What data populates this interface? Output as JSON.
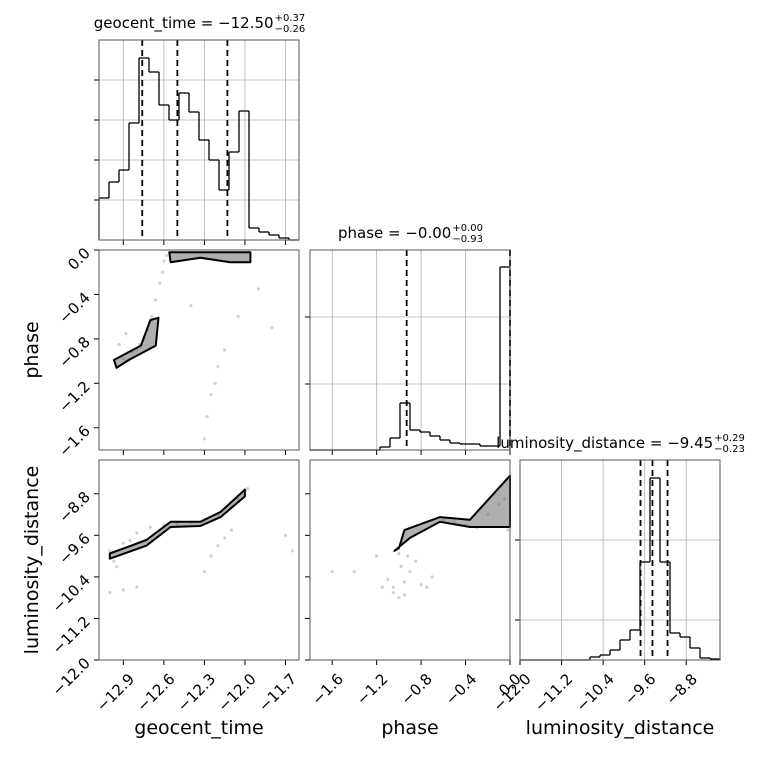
{
  "chart_data": [
    {
      "type": "histogram",
      "title": "geocent_time = −12.50",
      "title_sup": "+0.37",
      "title_sub": "−0.26",
      "bins": [
        -13.08,
        -13.006,
        -12.932,
        -12.858,
        -12.784,
        -12.71,
        -12.636,
        -12.562,
        -12.488,
        -12.414,
        -12.34,
        -12.266,
        -12.192,
        -12.118,
        -12.044,
        -11.97,
        -11.896,
        -11.822,
        -11.748,
        -11.674,
        -11.6
      ],
      "values": [
        42,
        58,
        70,
        117,
        182,
        168,
        135,
        120,
        147,
        128,
        100,
        80,
        50,
        88,
        129,
        12,
        8,
        5,
        2,
        0
      ],
      "quantiles": [
        -12.76,
        -12.5,
        -12.13
      ],
      "xlim": [
        -13.08,
        -11.6
      ],
      "ylim": [
        0,
        200
      ],
      "xticks": [
        {
          "value": -12.9,
          "label": "−12.9"
        },
        {
          "value": -12.6,
          "label": "−12.6"
        },
        {
          "value": -12.3,
          "label": "−12.3"
        },
        {
          "value": -12.0,
          "label": "−12.0"
        },
        {
          "value": -11.7,
          "label": "−11.7"
        }
      ],
      "yticks": [
        40,
        80,
        120,
        160
      ],
      "grid": true,
      "xticklabels": false,
      "yticklabels": false,
      "color": "#000000"
    },
    {
      "type": "contour",
      "ylabel": "phase",
      "points": {
        "x": [
          -12.95,
          -12.93,
          -12.9,
          -12.88,
          -12.86,
          -12.83,
          -12.8,
          -12.78,
          -12.75,
          -12.72,
          -12.69,
          -12.66,
          -12.63,
          -12.61,
          -12.6,
          -12.58,
          -12.3,
          -12.28,
          -12.25,
          -12.22,
          -12.2,
          -12.4,
          -12.15,
          -12.05,
          -11.9,
          -11.8
        ],
        "y": [
          -1.05,
          -0.85,
          -0.98,
          -0.75,
          -1.0,
          -0.92,
          -0.9,
          -0.85,
          -0.8,
          -0.72,
          -0.6,
          -0.45,
          -0.3,
          -0.2,
          -0.1,
          -0.05,
          -1.7,
          -1.5,
          -1.3,
          -1.2,
          -1.05,
          -0.5,
          -0.9,
          -0.6,
          -0.35,
          -0.7
        ]
      },
      "contours": [
        {
          "x": [
            -12.56,
            -11.96,
            -11.96,
            -12.11,
            -12.33,
            -12.55
          ],
          "y": [
            -0.02,
            -0.02,
            -0.11,
            -0.11,
            -0.07,
            -0.11
          ]
        },
        {
          "x": [
            -12.97,
            -12.77,
            -12.7,
            -12.64,
            -12.66,
            -12.86,
            -12.95
          ],
          "y": [
            -0.99,
            -0.86,
            -0.63,
            -0.61,
            -0.86,
            -0.99,
            -1.06
          ]
        }
      ],
      "xlim": [
        -13.08,
        -11.6
      ],
      "ylim": [
        -1.8,
        0
      ],
      "xticks": [
        {
          "value": -12.9,
          "label": "−12.9"
        },
        {
          "value": -12.6,
          "label": "−12.6"
        },
        {
          "value": -12.3,
          "label": "−12.3"
        },
        {
          "value": -12.0,
          "label": "−12.0"
        },
        {
          "value": -11.7,
          "label": "−11.7"
        }
      ],
      "yticks": [
        {
          "value": -1.6,
          "label": "−1.6"
        },
        {
          "value": -1.2,
          "label": "−1.2"
        },
        {
          "value": -0.8,
          "label": "−0.8"
        },
        {
          "value": -0.4,
          "label": "−0.4"
        },
        {
          "value": 0,
          "label": "0.0"
        }
      ],
      "grid": false,
      "xticklabels": false,
      "yticklabels": true,
      "color": "#000000"
    },
    {
      "type": "histogram",
      "title": "phase = −0.00",
      "title_sup": "+0.00",
      "title_sub": "−0.93",
      "bins": [
        -1.8,
        -1.71,
        -1.62,
        -1.53,
        -1.44,
        -1.35,
        -1.26,
        -1.17,
        -1.08,
        -0.99,
        -0.9,
        -0.81,
        -0.72,
        -0.63,
        -0.54,
        -0.45,
        -0.36,
        -0.27,
        -0.18,
        -0.09,
        0
      ],
      "values": [
        0,
        0,
        0,
        0,
        0,
        0,
        0,
        3,
        12,
        47,
        20,
        18,
        14,
        10,
        7,
        6,
        6,
        4,
        4,
        183
      ],
      "quantiles": [
        -0.93,
        0,
        0
      ],
      "xlim": [
        -1.8,
        0
      ],
      "ylim": [
        0,
        200
      ],
      "xticks": [
        {
          "value": -1.6,
          "label": "−1.6"
        },
        {
          "value": -1.2,
          "label": "−1.2"
        },
        {
          "value": -0.8,
          "label": "−0.8"
        },
        {
          "value": -0.4,
          "label": "−0.4"
        },
        {
          "value": 0,
          "label": "0.0"
        }
      ],
      "yticks": [
        66,
        133
      ],
      "grid": true,
      "xticklabels": false,
      "yticklabels": false,
      "color": "#000000"
    },
    {
      "type": "contour",
      "xlabel": "geocent_time",
      "ylabel": "luminosity_distance",
      "points": {
        "x": [
          -13.0,
          -12.97,
          -12.95,
          -12.9,
          -12.85,
          -12.8,
          -12.7,
          -12.6,
          -12.5,
          -12.4,
          -12.3,
          -12.2,
          -12.1,
          -12.05,
          -12.0,
          -11.98,
          -12.3,
          -12.25,
          -12.2,
          -12.15,
          -12.1,
          -13.0,
          -12.9,
          -12.8,
          -11.7,
          -11.65
        ],
        "y": [
          -9.9,
          -10.1,
          -10.2,
          -9.75,
          -9.7,
          -9.55,
          -9.45,
          -9.4,
          -9.38,
          -9.35,
          -9.3,
          -9.2,
          -9.05,
          -8.9,
          -8.75,
          -8.7,
          -10.3,
          -10.0,
          -9.8,
          -9.65,
          -9.5,
          -10.7,
          -10.65,
          -10.6,
          -9.6,
          -9.9
        ]
      },
      "contours": [
        {
          "x": [
            -13.0,
            -12.73,
            -12.55,
            -12.33,
            -12.18,
            -12.0,
            -12.0,
            -12.18,
            -12.33,
            -12.55,
            -12.73,
            -13.0
          ],
          "y": [
            -9.95,
            -9.69,
            -9.34,
            -9.34,
            -9.15,
            -8.72,
            -8.85,
            -9.25,
            -9.42,
            -9.44,
            -9.8,
            -10.05
          ]
        }
      ],
      "xlim": [
        -13.08,
        -11.6
      ],
      "ylim": [
        -12,
        -8.15
      ],
      "xticks": [
        {
          "value": -12.9,
          "label": "−12.9"
        },
        {
          "value": -12.6,
          "label": "−12.6"
        },
        {
          "value": -12.3,
          "label": "−12.3"
        },
        {
          "value": -12.0,
          "label": "−12.0"
        },
        {
          "value": -11.7,
          "label": "−11.7"
        }
      ],
      "yticks": [
        {
          "value": -12.0,
          "label": "−12.0"
        },
        {
          "value": -11.2,
          "label": "−11.2"
        },
        {
          "value": -10.4,
          "label": "−10.4"
        },
        {
          "value": -9.6,
          "label": "−9.6"
        },
        {
          "value": -8.8,
          "label": "−8.8"
        }
      ],
      "grid": false,
      "xticklabels": true,
      "yticklabels": true,
      "color": "#000000"
    },
    {
      "type": "contour",
      "xlabel": "phase",
      "points": {
        "x": [
          -1.6,
          -1.4,
          -1.2,
          -1.1,
          -1.05,
          -1.0,
          -0.98,
          -0.95,
          -0.92,
          -0.9,
          -0.85,
          -0.8,
          -0.75,
          -0.7,
          -1.15,
          -1.05,
          -1.0,
          -0.95,
          -0.6,
          -0.5,
          -0.4,
          -0.3,
          -0.2,
          -0.1,
          -0.05,
          -0.02
        ],
        "y": [
          -10.3,
          -10.3,
          -10.0,
          -10.45,
          -10.6,
          -9.95,
          -10.2,
          -10.5,
          -10.0,
          -10.3,
          -10.1,
          -10.55,
          -10.6,
          -10.4,
          -10.6,
          -10.7,
          -10.8,
          -10.75,
          -9.3,
          -9.35,
          -9.4,
          -9.45,
          -9.2,
          -9.0,
          -8.9,
          -9.5
        ]
      },
      "contours": [
        {
          "x": [
            -1.04,
            -0.9,
            -0.63,
            -0.36,
            0,
            0,
            -0.36,
            -0.63,
            -0.95,
            -1.0
          ],
          "y": [
            -9.9,
            -9.65,
            -9.34,
            -9.44,
            -9.44,
            -8.45,
            -9.3,
            -9.25,
            -9.5,
            -9.85
          ]
        }
      ],
      "xlim": [
        -1.8,
        0
      ],
      "ylim": [
        -12,
        -8.15
      ],
      "xticks": [
        {
          "value": -1.6,
          "label": "−1.6"
        },
        {
          "value": -1.2,
          "label": "−1.2"
        },
        {
          "value": -0.8,
          "label": "−0.8"
        },
        {
          "value": -0.4,
          "label": "−0.4"
        },
        {
          "value": 0,
          "label": "0.0"
        }
      ],
      "yticks": [
        {
          "value": -12.0,
          "label": "−12.0"
        },
        {
          "value": -11.2,
          "label": "−11.2"
        },
        {
          "value": -10.4,
          "label": "−10.4"
        },
        {
          "value": -9.6,
          "label": "−9.6"
        },
        {
          "value": -8.8,
          "label": "−8.8"
        }
      ],
      "grid": false,
      "xticklabels": true,
      "yticklabels": false,
      "color": "#000000"
    },
    {
      "type": "histogram",
      "title": "luminosity_distance = −9.45",
      "title_sup": "+0.29",
      "title_sub": "−0.23",
      "xlabel": "luminosity_distance",
      "bins": [
        -12,
        -11.8075,
        -11.615,
        -11.4225,
        -11.23,
        -11.0375,
        -10.845,
        -10.6525,
        -10.46,
        -10.2675,
        -10.075,
        -9.8825,
        -9.69,
        -9.4975,
        -9.305,
        -9.1125,
        -8.92,
        -8.7275,
        -8.535,
        -8.3425,
        -8.15
      ],
      "values": [
        0,
        0,
        0,
        0,
        0,
        0,
        0,
        3,
        5,
        10,
        20,
        30,
        98,
        182,
        98,
        27,
        23,
        12,
        2,
        1
      ],
      "quantiles": [
        -9.68,
        -9.45,
        -9.16
      ],
      "xlim": [
        -12,
        -8.15
      ],
      "ylim": [
        0,
        200
      ],
      "xticks": [
        {
          "value": -12.0,
          "label": "−12.0"
        },
        {
          "value": -11.2,
          "label": "−11.2"
        },
        {
          "value": -10.4,
          "label": "−10.4"
        },
        {
          "value": -9.6,
          "label": "−9.6"
        },
        {
          "value": -8.8,
          "label": "−8.8"
        }
      ],
      "yticks": [
        40,
        120
      ],
      "grid": true,
      "xticklabels": true,
      "yticklabels": false,
      "color": "#000000"
    }
  ]
}
